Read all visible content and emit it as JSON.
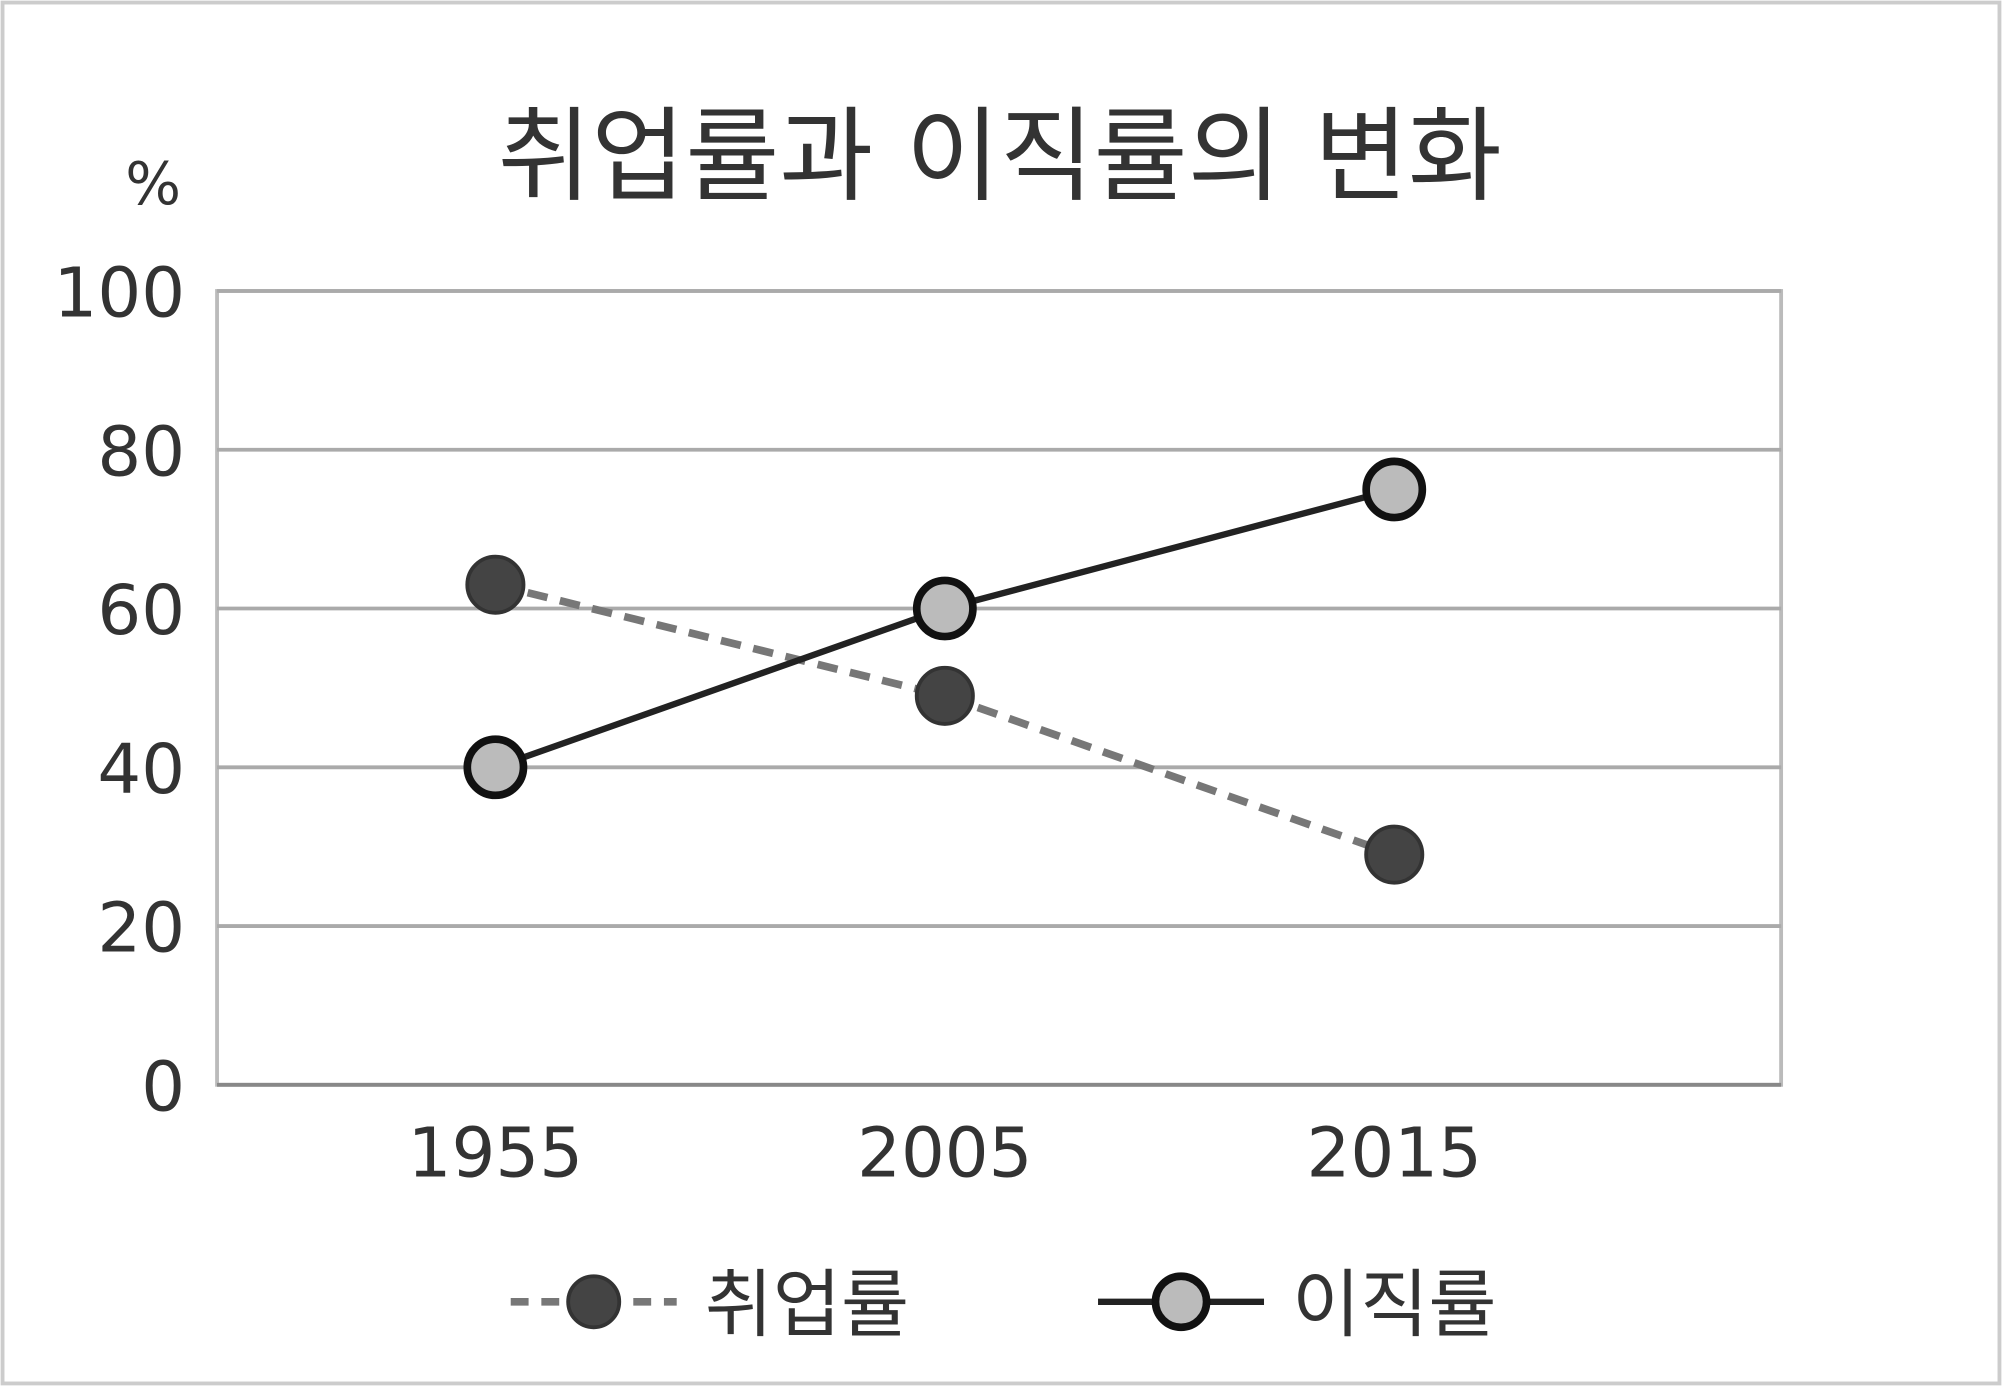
{
  "chart_data": {
    "type": "line",
    "title": "취업률과 이직률의 변화",
    "ylabel": "%",
    "xlabel": "",
    "categories": [
      "1955",
      "2005",
      "2015"
    ],
    "ylim": [
      0,
      100
    ],
    "yticks": [
      0,
      20,
      40,
      60,
      80,
      100
    ],
    "grid": true,
    "legend_position": "bottom",
    "series": [
      {
        "name": "취업률",
        "values": [
          63,
          49,
          29
        ],
        "line_style": "dashed",
        "line_color": "#777777",
        "marker_color": "#444444"
      },
      {
        "name": "이직률",
        "values": [
          40,
          60,
          75
        ],
        "line_style": "solid",
        "line_color": "#222222",
        "marker_color": "#bbbbbb"
      }
    ]
  }
}
